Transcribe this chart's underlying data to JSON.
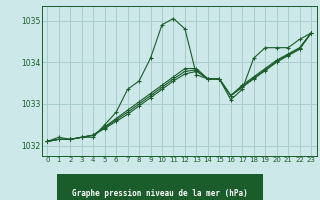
{
  "bg_color": "#cce8e8",
  "grid_color": "#aacccc",
  "line_color": "#1a5c2a",
  "title": "Graphe pression niveau de la mer (hPa)",
  "xlim": [
    -0.5,
    23.5
  ],
  "ylim": [
    1031.75,
    1035.35
  ],
  "yticks": [
    1032,
    1033,
    1034,
    1035
  ],
  "xticks": [
    0,
    1,
    2,
    3,
    4,
    5,
    6,
    7,
    8,
    9,
    10,
    11,
    12,
    13,
    14,
    15,
    16,
    17,
    18,
    19,
    20,
    21,
    22,
    23
  ],
  "series": [
    [
      1032.1,
      1032.2,
      1032.15,
      1032.2,
      1032.2,
      1032.5,
      1032.8,
      1033.35,
      1033.55,
      1034.1,
      1034.9,
      1035.05,
      1034.8,
      1033.7,
      1033.6,
      1033.6,
      1033.1,
      1033.35,
      1034.1,
      1034.35,
      1034.35,
      1034.35,
      1034.55,
      1034.7
    ],
    [
      1032.1,
      1032.15,
      1032.15,
      1032.2,
      1032.25,
      1032.45,
      1032.65,
      1032.85,
      1033.05,
      1033.25,
      1033.45,
      1033.65,
      1033.85,
      1033.85,
      1033.6,
      1033.6,
      1033.2,
      1033.45,
      1033.65,
      1033.85,
      1034.05,
      1034.2,
      1034.35,
      1034.7
    ],
    [
      1032.1,
      1032.15,
      1032.15,
      1032.2,
      1032.25,
      1032.43,
      1032.62,
      1032.8,
      1033.0,
      1033.2,
      1033.4,
      1033.6,
      1033.78,
      1033.82,
      1033.6,
      1033.6,
      1033.2,
      1033.42,
      1033.62,
      1033.82,
      1034.02,
      1034.18,
      1034.33,
      1034.7
    ],
    [
      1032.1,
      1032.15,
      1032.15,
      1032.2,
      1032.25,
      1032.41,
      1032.58,
      1032.75,
      1032.95,
      1033.15,
      1033.35,
      1033.55,
      1033.72,
      1033.78,
      1033.6,
      1033.6,
      1033.2,
      1033.4,
      1033.6,
      1033.8,
      1034.0,
      1034.16,
      1034.31,
      1034.7
    ]
  ]
}
